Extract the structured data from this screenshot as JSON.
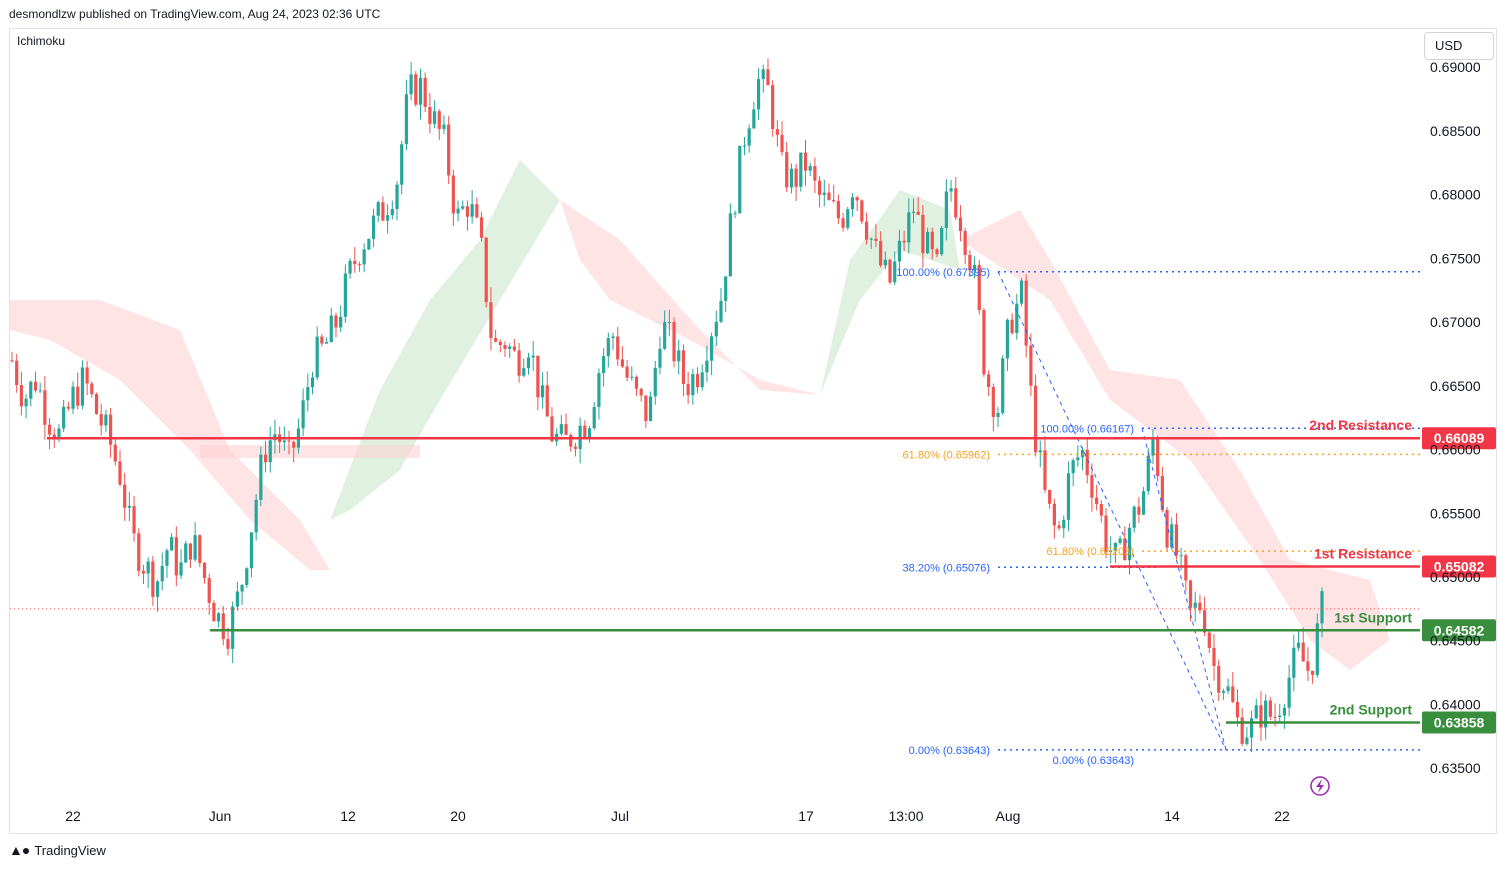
{
  "header": {
    "publisher": "desmondlzw published on TradingView.com, Aug 24, 2023 02:36 UTC",
    "indicator": "Ichimoku",
    "currency": "USD",
    "brand": "TradingView"
  },
  "colors": {
    "up": "#26a69a",
    "down": "#ef5350",
    "resistance": "#f23645",
    "support": "#388e3c",
    "fib_blue": "#2962ff",
    "fib_orange": "#f7a21b",
    "cloud_green": "#c8e6c9",
    "cloud_red": "#ffcdd2"
  },
  "chart_data": {
    "type": "candlestick",
    "ylim": [
      0.6325,
      0.693
    ],
    "yticks": [
      "0.69000",
      "0.68500",
      "0.68000",
      "0.67500",
      "0.67000",
      "0.66500",
      "0.66000",
      "0.65500",
      "0.65000",
      "0.64500",
      "0.64000",
      "0.63500"
    ],
    "xticks": [
      "22",
      "Jun",
      "12",
      "20",
      "Jul",
      "17",
      "13:00",
      "Aug",
      "14",
      "22"
    ],
    "levels": [
      {
        "label": "2nd Resistance",
        "price": "0.66089",
        "value": 0.66089,
        "kind": "resistance"
      },
      {
        "label": "1st Resistance",
        "price": "0.65082",
        "value": 0.65082,
        "kind": "resistance"
      },
      {
        "label": "1st Support",
        "price": "0.64582",
        "value": 0.64582,
        "kind": "support"
      },
      {
        "label": "2nd Support",
        "price": "0.63858",
        "value": 0.63858,
        "kind": "support"
      }
    ],
    "fib_labels": [
      {
        "text": "100.00% (0.67395)",
        "value": 0.67395,
        "color": "blue"
      },
      {
        "text": "61.80% (0.65962)",
        "value": 0.65962,
        "color": "orange"
      },
      {
        "text": "38.20% (0.65076)",
        "value": 0.65076,
        "color": "blue"
      },
      {
        "text": "0.00% (0.63643)",
        "value": 0.63643,
        "color": "blue"
      },
      {
        "text": "100.00% (0.66167)",
        "value": 0.66167,
        "color": "blue"
      },
      {
        "text": "61.80% (0.65203)",
        "value": 0.65203,
        "color": "orange"
      },
      {
        "text": "0.00% (0.63643)",
        "value": 0.63643,
        "color": "blue"
      }
    ],
    "last_price": 0.6475,
    "price_path": [
      0.667,
      0.664,
      0.6655,
      0.6625,
      0.661,
      0.664,
      0.6655,
      0.663,
      0.661,
      0.658,
      0.653,
      0.651,
      0.6495,
      0.6525,
      0.6505,
      0.653,
      0.65,
      0.647,
      0.6458,
      0.649,
      0.6545,
      0.66,
      0.6615,
      0.659,
      0.662,
      0.667,
      0.668,
      0.67,
      0.6735,
      0.676,
      0.6775,
      0.679,
      0.681,
      0.688,
      0.6885,
      0.686,
      0.684,
      0.678,
      0.6795,
      0.676,
      0.668,
      0.6685,
      0.667,
      0.6685,
      0.664,
      0.661,
      0.6605,
      0.6615,
      0.6625,
      0.667,
      0.669,
      0.666,
      0.664,
      0.6625,
      0.67,
      0.668,
      0.665,
      0.666,
      0.669,
      0.672,
      0.679,
      0.685,
      0.689,
      0.688,
      0.682,
      0.681,
      0.6825,
      0.68,
      0.679,
      0.678,
      0.681,
      0.678,
      0.675,
      0.673,
      0.676,
      0.679,
      0.676,
      0.674,
      0.681,
      0.678,
      0.674,
      0.666,
      0.663,
      0.67,
      0.672,
      0.662,
      0.656,
      0.653,
      0.658,
      0.66,
      0.657,
      0.653,
      0.651,
      0.654,
      0.656,
      0.661,
      0.654,
      0.6515,
      0.647,
      0.648,
      0.643,
      0.6415,
      0.6385,
      0.638,
      0.6395,
      0.639,
      0.6415,
      0.644,
      0.6425,
      0.6475
    ]
  }
}
